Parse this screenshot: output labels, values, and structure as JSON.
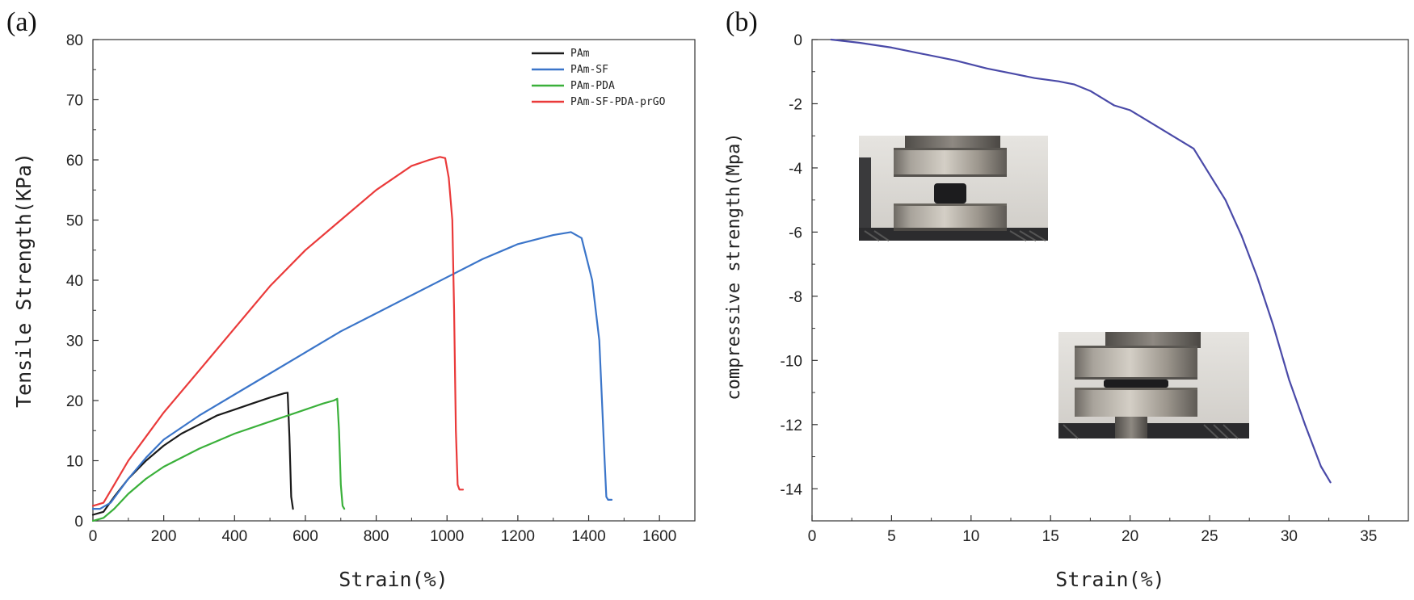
{
  "chart_data": [
    {
      "type": "line",
      "panel_label": "(a)",
      "title": "",
      "xlabel": "Strain(%)",
      "ylabel": "Tensile Strength(KPa)",
      "xlim": [
        0,
        1700
      ],
      "ylim": [
        0,
        80
      ],
      "xticks": [
        0,
        200,
        400,
        600,
        800,
        1000,
        1200,
        1400,
        1600
      ],
      "yticks": [
        0,
        10,
        20,
        30,
        40,
        50,
        60,
        70,
        80
      ],
      "grid": false,
      "legend": "top-right",
      "series": [
        {
          "name": "PAm",
          "color": "#1a1a1a",
          "x": [
            0,
            30,
            60,
            100,
            150,
            200,
            250,
            300,
            350,
            400,
            450,
            500,
            540,
            550,
            555,
            560,
            565
          ],
          "y": [
            1,
            1.5,
            4,
            7,
            10,
            12.5,
            14.5,
            16,
            17.5,
            18.5,
            19.5,
            20.5,
            21.2,
            21.3,
            14,
            4,
            2
          ]
        },
        {
          "name": "PAm-SF",
          "color": "#3b75c9",
          "x": [
            0,
            20,
            50,
            100,
            150,
            200,
            300,
            400,
            500,
            600,
            700,
            800,
            900,
            1000,
            1100,
            1200,
            1300,
            1350,
            1380,
            1410,
            1430,
            1445,
            1450,
            1455,
            1465
          ],
          "y": [
            2,
            2,
            3,
            7,
            10.5,
            13.5,
            17.5,
            21,
            24.5,
            28,
            31.5,
            34.5,
            37.5,
            40.5,
            43.5,
            46,
            47.5,
            48,
            47,
            40,
            30,
            10,
            4,
            3.5,
            3.5
          ]
        },
        {
          "name": "PAm-PDA",
          "color": "#3ab03a",
          "x": [
            0,
            30,
            60,
            100,
            150,
            200,
            300,
            400,
            500,
            600,
            650,
            680,
            690,
            695,
            700,
            705,
            710
          ],
          "y": [
            0,
            0.5,
            2,
            4.5,
            7,
            9,
            12,
            14.5,
            16.5,
            18.5,
            19.5,
            20,
            20.3,
            15,
            6,
            2.5,
            2
          ]
        },
        {
          "name": "PAm-SF-PDA-prGO",
          "color": "#ea3a3a",
          "x": [
            0,
            30,
            60,
            100,
            150,
            200,
            300,
            400,
            500,
            600,
            700,
            800,
            900,
            950,
            980,
            995,
            1005,
            1015,
            1020,
            1025,
            1030,
            1035,
            1045
          ],
          "y": [
            2.5,
            3,
            6,
            10,
            14,
            18,
            25,
            32,
            39,
            45,
            50,
            55,
            59,
            60,
            60.5,
            60.3,
            57,
            50,
            35,
            15,
            6,
            5.2,
            5.2
          ]
        }
      ]
    },
    {
      "type": "line",
      "panel_label": "(b)",
      "title": "",
      "xlabel": "Strain(%)",
      "ylabel": "compressive strength(Mpa)",
      "xlim": [
        0,
        37.5
      ],
      "ylim": [
        -15,
        0
      ],
      "xticks": [
        0,
        5,
        10,
        15,
        20,
        25,
        30,
        35
      ],
      "yticks": [
        0,
        -2,
        -4,
        -6,
        -8,
        -10,
        -12,
        -14
      ],
      "grid": false,
      "series": [
        {
          "name": "compressive",
          "color": "#4a4aa8",
          "x": [
            1.2,
            3,
            5,
            7,
            9,
            11,
            12.5,
            14,
            15.5,
            16.5,
            17.5,
            19,
            20,
            21,
            22.5,
            24,
            25,
            26,
            27,
            28,
            29,
            30,
            31,
            32,
            32.6
          ],
          "y": [
            0,
            -0.1,
            -0.25,
            -0.45,
            -0.65,
            -0.9,
            -1.05,
            -1.2,
            -1.3,
            -1.4,
            -1.6,
            -2.05,
            -2.2,
            -2.5,
            -2.95,
            -3.4,
            -4.2,
            -5.0,
            -6.1,
            -7.4,
            -8.9,
            -10.6,
            -12.0,
            -13.3,
            -13.8
          ]
        }
      ],
      "insets": [
        {
          "name": "sample-before-compression-photo"
        },
        {
          "name": "sample-under-compression-photo"
        }
      ]
    }
  ]
}
